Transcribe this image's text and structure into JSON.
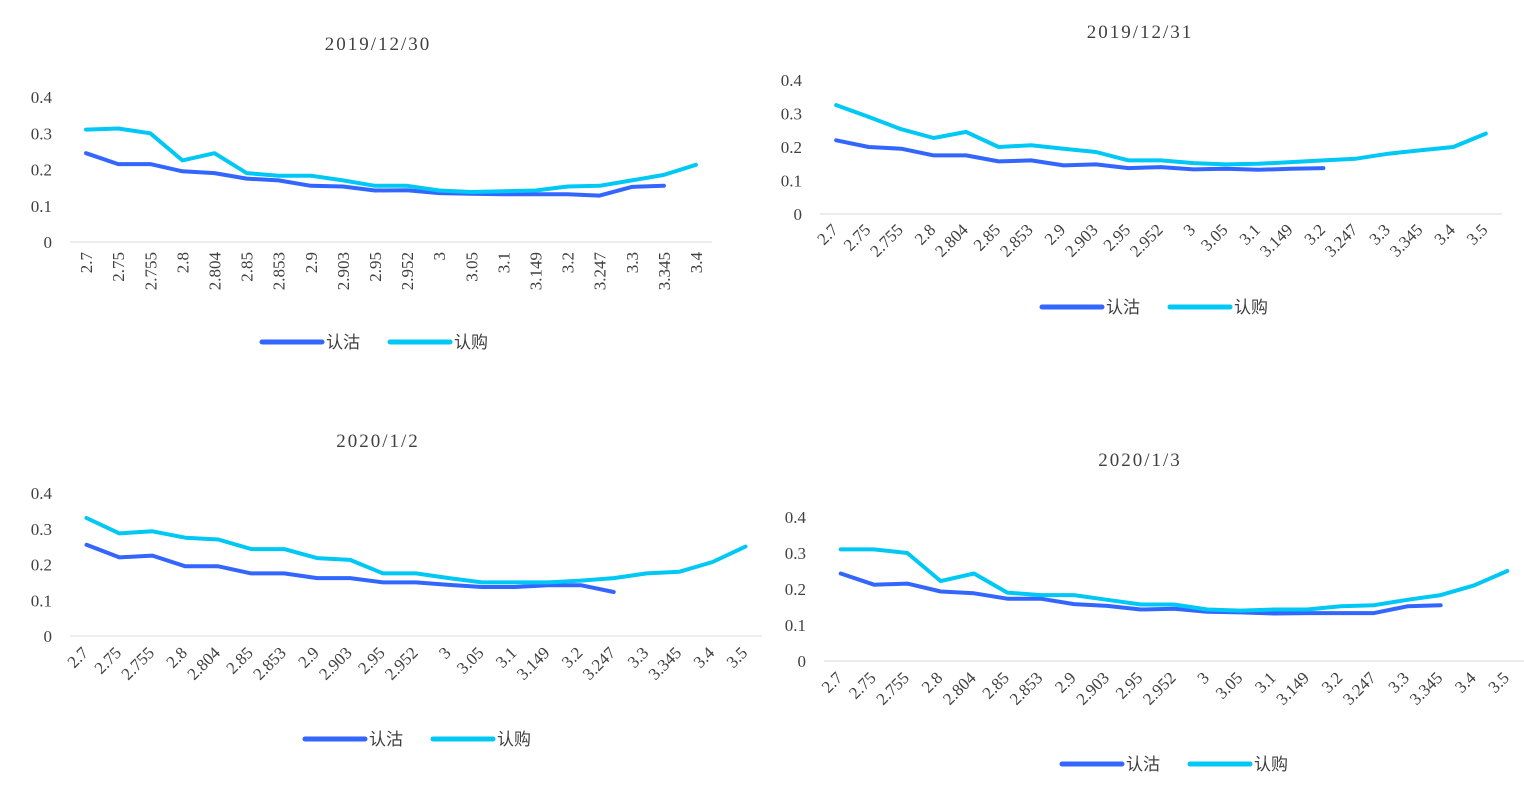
{
  "colors": {
    "put": "#3366ff",
    "call": "#00c8f5",
    "axis": "#d9d9d9",
    "text": "#404040"
  },
  "chart_data": [
    {
      "type": "line",
      "title": "2019/12/30",
      "categories": [
        "2.7",
        "2.75",
        "2.755",
        "2.8",
        "2.804",
        "2.85",
        "2.853",
        "2.9",
        "2.903",
        "2.95",
        "2.952",
        "3",
        "3.05",
        "3.1",
        "3.149",
        "3.2",
        "3.247",
        "3.3",
        "3.345",
        "3.4"
      ],
      "yticks": [
        "0",
        "0.1",
        "0.2",
        "0.3",
        "0.4"
      ],
      "ylim": [
        0,
        0.4
      ],
      "legend": [
        "认沽",
        "认购"
      ],
      "series": [
        {
          "name": "认沽",
          "values": [
            0.245,
            0.215,
            0.215,
            0.195,
            0.19,
            0.175,
            0.17,
            0.155,
            0.153,
            0.142,
            0.143,
            0.135,
            0.133,
            0.132,
            0.132,
            0.132,
            0.128,
            0.152,
            0.155,
            null
          ]
        },
        {
          "name": "认购",
          "values": [
            0.31,
            0.313,
            0.3,
            0.225,
            0.245,
            0.19,
            0.183,
            0.183,
            0.17,
            0.155,
            0.155,
            0.142,
            0.138,
            0.14,
            0.142,
            0.153,
            0.155,
            0.17,
            0.185,
            0.213
          ]
        }
      ]
    },
    {
      "type": "line",
      "title": "2019/12/31",
      "categories": [
        "2.7",
        "2.75",
        "2.755",
        "2.8",
        "2.804",
        "2.85",
        "2.853",
        "2.9",
        "2.903",
        "2.95",
        "2.952",
        "3",
        "3.05",
        "3.1",
        "3.149",
        "3.2",
        "3.247",
        "3.3",
        "3.345",
        "3.4",
        "3.5"
      ],
      "yticks": [
        "0",
        "0.1",
        "0.2",
        "0.3",
        "0.4"
      ],
      "ylim": [
        0,
        0.4
      ],
      "legend": [
        "认沽",
        "认购"
      ],
      "series": [
        {
          "name": "认沽",
          "values": [
            0.22,
            0.2,
            0.195,
            0.175,
            0.175,
            0.157,
            0.16,
            0.145,
            0.148,
            0.137,
            0.14,
            0.133,
            0.135,
            0.132,
            0.135,
            0.137,
            null,
            null,
            null,
            null,
            null
          ]
        },
        {
          "name": "认购",
          "values": [
            0.325,
            0.29,
            0.253,
            0.227,
            0.245,
            0.2,
            0.205,
            0.195,
            0.185,
            0.16,
            0.16,
            0.152,
            0.148,
            0.15,
            0.155,
            0.16,
            0.165,
            0.18,
            0.19,
            0.2,
            0.24
          ]
        }
      ]
    },
    {
      "type": "line",
      "title": "2020/1/2",
      "categories": [
        "2.7",
        "2.75",
        "2.755",
        "2.8",
        "2.804",
        "2.85",
        "2.853",
        "2.9",
        "2.903",
        "2.95",
        "2.952",
        "3",
        "3.05",
        "3.1",
        "3.149",
        "3.2",
        "3.247",
        "3.3",
        "3.345",
        "3.4",
        "3.5"
      ],
      "yticks": [
        "0",
        "0.1",
        "0.2",
        "0.3",
        "0.4"
      ],
      "ylim": [
        0,
        0.4
      ],
      "legend": [
        "认沽",
        "认购"
      ],
      "series": [
        {
          "name": "认沽",
          "values": [
            0.255,
            0.22,
            0.225,
            0.195,
            0.195,
            0.175,
            0.175,
            0.162,
            0.162,
            0.15,
            0.15,
            0.143,
            0.137,
            0.137,
            0.142,
            0.142,
            0.123,
            null,
            null,
            null,
            null
          ]
        },
        {
          "name": "认购",
          "values": [
            0.33,
            0.287,
            0.293,
            0.275,
            0.27,
            0.243,
            0.243,
            0.218,
            0.213,
            0.175,
            0.175,
            0.162,
            0.15,
            0.15,
            0.15,
            0.155,
            0.162,
            0.175,
            0.18,
            0.207,
            0.25
          ]
        }
      ]
    },
    {
      "type": "line",
      "title": "2020/1/3",
      "categories": [
        "2.7",
        "2.75",
        "2.755",
        "2.8",
        "2.804",
        "2.85",
        "2.853",
        "2.9",
        "2.903",
        "2.95",
        "2.952",
        "3",
        "3.05",
        "3.1",
        "3.149",
        "3.2",
        "3.247",
        "3.3",
        "3.345",
        "3.4",
        "3.5"
      ],
      "yticks": [
        "0",
        "0.1",
        "0.2",
        "0.3",
        "0.4"
      ],
      "ylim": [
        0,
        0.4
      ],
      "legend": [
        "认沽",
        "认购"
      ],
      "series": [
        {
          "name": "认沽",
          "values": [
            0.243,
            0.212,
            0.215,
            0.193,
            0.188,
            0.173,
            0.173,
            0.158,
            0.153,
            0.143,
            0.145,
            0.137,
            0.135,
            0.132,
            0.133,
            0.133,
            0.133,
            0.152,
            0.155,
            null,
            null
          ]
        },
        {
          "name": "认购",
          "values": [
            0.31,
            0.31,
            0.3,
            0.222,
            0.243,
            0.19,
            0.183,
            0.183,
            0.17,
            0.157,
            0.157,
            0.143,
            0.14,
            0.143,
            0.143,
            0.152,
            0.155,
            0.17,
            0.183,
            0.21,
            0.25
          ]
        }
      ]
    }
  ]
}
